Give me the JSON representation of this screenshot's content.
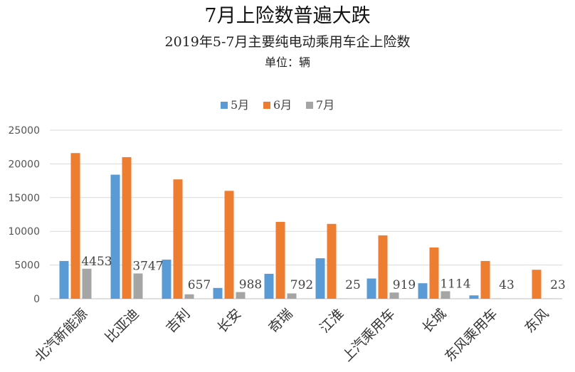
{
  "chart_data": {
    "type": "bar",
    "title": "7月上险数普遍大跌",
    "subtitle": "2019年5-7月主要纯电动乘用车企上险数",
    "unit_label": "单位：辆",
    "categories": [
      "北汽新能源",
      "比亚迪",
      "吉利",
      "长安",
      "奇瑞",
      "江淮",
      "上汽乘用车",
      "长城",
      "东风乘用车",
      "东风"
    ],
    "series": [
      {
        "name": "5月",
        "color": "#5B9BD5",
        "values": [
          5600,
          18400,
          5800,
          1600,
          3700,
          6000,
          3000,
          2300,
          500,
          0
        ]
      },
      {
        "name": "6月",
        "color": "#ED7D31",
        "values": [
          21600,
          21000,
          17700,
          16000,
          11400,
          11100,
          9400,
          7600,
          5600,
          4300
        ]
      },
      {
        "name": "7月",
        "color": "#A5A5A5",
        "values": [
          4453,
          3747,
          657,
          988,
          792,
          25,
          919,
          1114,
          43,
          23
        ]
      }
    ],
    "data_labels_series": "7月",
    "y_ticks": [
      0,
      5000,
      10000,
      15000,
      20000,
      25000
    ],
    "ylim": [
      0,
      25000
    ],
    "xlabel": "",
    "ylabel": "",
    "legend_position": "top"
  }
}
